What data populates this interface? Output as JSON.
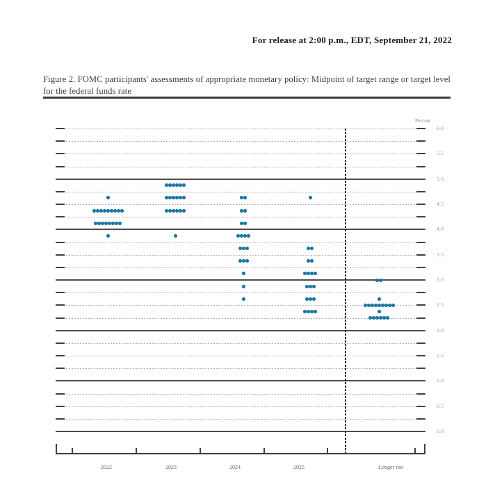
{
  "page": {
    "release_line": "For release at 2:00 p.m., EDT, September 21, 2022",
    "caption": "Figure 2.  FOMC participants' assessments of appropriate monetary policy:  Midpoint of target range or target level for the federal funds rate"
  },
  "chart_data": {
    "type": "scatter",
    "subtype": "fomc-dot-plot",
    "title": "Figure 2. FOMC participants' assessments of appropriate monetary policy: Midpoint of target range or target level for the federal funds rate",
    "ylabel": "Percent",
    "xlabel": "",
    "ylim": [
      0.0,
      6.0
    ],
    "y_label_step": 0.5,
    "y_grid_step": 0.25,
    "grid": "dashed lines every 0.25 pct; solid lines at integer percents",
    "y_tick_labels": [
      "6.0",
      "5.5",
      "5.0",
      "4.5",
      "4.0",
      "3.5",
      "3.0",
      "2.5",
      "2.0",
      "1.5",
      "1.0",
      "0.5",
      "0.0"
    ],
    "categories": [
      "2022",
      "2023",
      "2024",
      "2025",
      "Longer run"
    ],
    "legend_position": "none",
    "separator": "dashed vertical line between 2025 and Longer run",
    "dot_color": "#1a7aa9",
    "series": [
      {
        "name": "2022",
        "dots": [
          {
            "rate": 4.625,
            "count": 1
          },
          {
            "rate": 4.375,
            "count": 9
          },
          {
            "rate": 4.125,
            "count": 8
          },
          {
            "rate": 3.875,
            "count": 1
          }
        ]
      },
      {
        "name": "2023",
        "dots": [
          {
            "rate": 4.875,
            "count": 6
          },
          {
            "rate": 4.625,
            "count": 6
          },
          {
            "rate": 4.375,
            "count": 6
          },
          {
            "rate": 3.875,
            "count": 1
          }
        ]
      },
      {
        "name": "2024",
        "dots": [
          {
            "rate": 4.625,
            "count": 2
          },
          {
            "rate": 4.375,
            "count": 2
          },
          {
            "rate": 4.125,
            "count": 2
          },
          {
            "rate": 3.875,
            "count": 4
          },
          {
            "rate": 3.625,
            "count": 3
          },
          {
            "rate": 3.375,
            "count": 3
          },
          {
            "rate": 3.125,
            "count": 1
          },
          {
            "rate": 2.875,
            "count": 1
          },
          {
            "rate": 2.625,
            "count": 1
          }
        ]
      },
      {
        "name": "2025",
        "dots": [
          {
            "rate": 4.625,
            "count": 1
          },
          {
            "rate": 3.625,
            "count": 2
          },
          {
            "rate": 3.375,
            "count": 2
          },
          {
            "rate": 3.125,
            "count": 4
          },
          {
            "rate": 2.875,
            "count": 3
          },
          {
            "rate": 2.625,
            "count": 3
          },
          {
            "rate": 2.375,
            "count": 4
          }
        ]
      },
      {
        "name": "Longer run",
        "dots": [
          {
            "rate": 3.0,
            "count": 2
          },
          {
            "rate": 2.625,
            "count": 1
          },
          {
            "rate": 2.5,
            "count": 9
          },
          {
            "rate": 2.375,
            "count": 1
          },
          {
            "rate": 2.25,
            "count": 6
          }
        ]
      }
    ]
  }
}
